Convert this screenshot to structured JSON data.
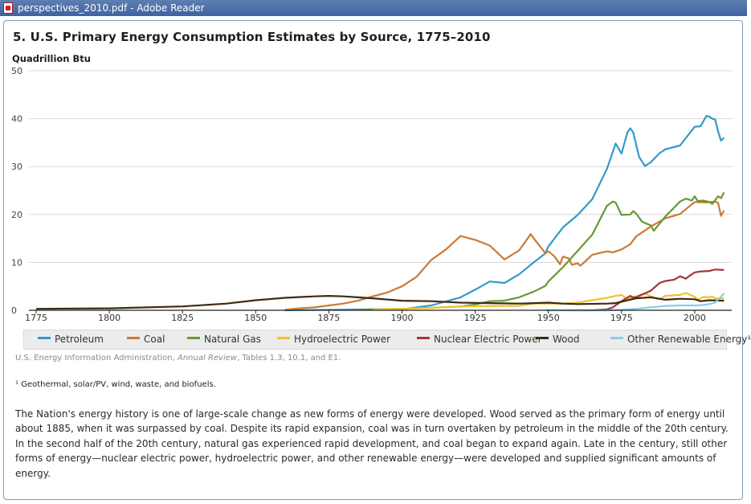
{
  "window": {
    "title": "perspectives_2010.pdf - Adobe Reader"
  },
  "chart_title": "5. U.S. Primary Energy Consumption Estimates by Source, 1775–2010",
  "y_axis_label": "Quadrillion Btu",
  "source": {
    "prefix": "U.S. Energy Information Administration, ",
    "publication": "Annual Review",
    "suffix": ", Tables 1.3, 10.1, and E1."
  },
  "footnote": "¹ Geothermal, solar/PV, wind, waste, and biofuels.",
  "body_text": "The Nation's energy history is one of large-scale change as new forms of energy were developed. Wood served as the primary form of energy until about 1885, when it was surpassed by coal. Despite its rapid expansion, coal was in turn overtaken by petroleum in the middle of the 20th century. In the second half of the 20th century, natural gas experienced rapid development, and coal began to expand again. Late in the century, still other forms of energy—nuclear electric power, hydroelectric power, and other renewable energy—were developed and supplied significant amounts of energy.",
  "chart_data": {
    "type": "line",
    "title": "5. U.S. Primary Energy Consumption Estimates by Source, 1775–2010",
    "ylabel": "Quadrillion Btu",
    "xlabel": "",
    "xlim": [
      1775,
      2011
    ],
    "ylim": [
      0,
      50
    ],
    "xticks": [
      1775,
      1800,
      1825,
      1850,
      1875,
      1900,
      1925,
      1950,
      1975,
      2000
    ],
    "yticks": [
      0,
      10,
      20,
      30,
      40,
      50
    ],
    "grid": "horizontal",
    "legend_position": "bottom",
    "series": [
      {
        "name": "Petroleum",
        "color": "#3399cc",
        "points": [
          [
            1860,
            0
          ],
          [
            1890,
            0.2
          ],
          [
            1900,
            0.2
          ],
          [
            1910,
            1.0
          ],
          [
            1920,
            2.7
          ],
          [
            1925,
            4.3
          ],
          [
            1930,
            6.0
          ],
          [
            1935,
            5.7
          ],
          [
            1940,
            7.5
          ],
          [
            1945,
            10.0
          ],
          [
            1949,
            11.9
          ],
          [
            1950,
            13.3
          ],
          [
            1955,
            17.3
          ],
          [
            1960,
            19.9
          ],
          [
            1965,
            23.2
          ],
          [
            1970,
            29.5
          ],
          [
            1973,
            34.8
          ],
          [
            1975,
            32.7
          ],
          [
            1977,
            37.1
          ],
          [
            1978,
            38.0
          ],
          [
            1979,
            37.1
          ],
          [
            1981,
            32.0
          ],
          [
            1983,
            30.1
          ],
          [
            1985,
            30.9
          ],
          [
            1988,
            32.8
          ],
          [
            1990,
            33.6
          ],
          [
            1995,
            34.4
          ],
          [
            2000,
            38.3
          ],
          [
            2002,
            38.4
          ],
          [
            2004,
            40.6
          ],
          [
            2005,
            40.4
          ],
          [
            2006,
            40.0
          ],
          [
            2007,
            39.8
          ],
          [
            2008,
            37.3
          ],
          [
            2009,
            35.4
          ],
          [
            2010,
            36.0
          ]
        ]
      },
      {
        "name": "Coal",
        "color": "#cc7a33",
        "points": [
          [
            1860,
            0.1
          ],
          [
            1865,
            0.4
          ],
          [
            1870,
            0.6
          ],
          [
            1875,
            1.0
          ],
          [
            1880,
            1.4
          ],
          [
            1885,
            2.0
          ],
          [
            1890,
            2.9
          ],
          [
            1895,
            3.7
          ],
          [
            1900,
            5.0
          ],
          [
            1905,
            7.0
          ],
          [
            1910,
            10.5
          ],
          [
            1915,
            12.7
          ],
          [
            1920,
            15.5
          ],
          [
            1925,
            14.7
          ],
          [
            1930,
            13.5
          ],
          [
            1935,
            10.6
          ],
          [
            1940,
            12.5
          ],
          [
            1944,
            15.9
          ],
          [
            1945,
            15.0
          ],
          [
            1949,
            11.9
          ],
          [
            1950,
            12.3
          ],
          [
            1952,
            11.3
          ],
          [
            1954,
            9.6
          ],
          [
            1955,
            11.2
          ],
          [
            1957,
            10.8
          ],
          [
            1958,
            9.5
          ],
          [
            1960,
            9.8
          ],
          [
            1961,
            9.3
          ],
          [
            1965,
            11.6
          ],
          [
            1970,
            12.3
          ],
          [
            1972,
            12.1
          ],
          [
            1975,
            12.7
          ],
          [
            1978,
            13.8
          ],
          [
            1980,
            15.4
          ],
          [
            1985,
            17.5
          ],
          [
            1990,
            19.2
          ],
          [
            1995,
            20.1
          ],
          [
            2000,
            22.6
          ],
          [
            2004,
            22.5
          ],
          [
            2007,
            22.7
          ],
          [
            2008,
            22.4
          ],
          [
            2009,
            19.7
          ],
          [
            2010,
            20.8
          ]
        ]
      },
      {
        "name": "Natural Gas",
        "color": "#669933",
        "points": [
          [
            1885,
            0.1
          ],
          [
            1890,
            0.2
          ],
          [
            1900,
            0.3
          ],
          [
            1910,
            0.5
          ],
          [
            1920,
            0.8
          ],
          [
            1925,
            1.2
          ],
          [
            1930,
            1.9
          ],
          [
            1935,
            2.0
          ],
          [
            1940,
            2.7
          ],
          [
            1945,
            3.9
          ],
          [
            1949,
            5.1
          ],
          [
            1950,
            6.0
          ],
          [
            1955,
            9.0
          ],
          [
            1960,
            12.4
          ],
          [
            1965,
            15.8
          ],
          [
            1970,
            21.8
          ],
          [
            1972,
            22.7
          ],
          [
            1973,
            22.5
          ],
          [
            1975,
            19.9
          ],
          [
            1978,
            20.0
          ],
          [
            1979,
            20.7
          ],
          [
            1980,
            20.2
          ],
          [
            1982,
            18.5
          ],
          [
            1985,
            17.7
          ],
          [
            1986,
            16.6
          ],
          [
            1990,
            19.6
          ],
          [
            1995,
            22.7
          ],
          [
            1997,
            23.3
          ],
          [
            1999,
            22.9
          ],
          [
            2000,
            23.8
          ],
          [
            2001,
            22.8
          ],
          [
            2003,
            22.9
          ],
          [
            2005,
            22.6
          ],
          [
            2006,
            22.2
          ],
          [
            2008,
            23.8
          ],
          [
            2009,
            23.4
          ],
          [
            2010,
            24.6
          ]
        ]
      },
      {
        "name": "Hydroelectric Power",
        "color": "#f2c12e",
        "points": [
          [
            1890,
            0.1
          ],
          [
            1900,
            0.3
          ],
          [
            1910,
            0.5
          ],
          [
            1920,
            0.8
          ],
          [
            1930,
            0.9
          ],
          [
            1940,
            0.9
          ],
          [
            1945,
            1.4
          ],
          [
            1950,
            1.4
          ],
          [
            1955,
            1.4
          ],
          [
            1960,
            1.6
          ],
          [
            1965,
            2.1
          ],
          [
            1970,
            2.6
          ],
          [
            1973,
            3.0
          ],
          [
            1975,
            3.2
          ],
          [
            1977,
            2.3
          ],
          [
            1980,
            2.9
          ],
          [
            1983,
            3.5
          ],
          [
            1985,
            2.9
          ],
          [
            1988,
            2.3
          ],
          [
            1990,
            3.0
          ],
          [
            1995,
            3.2
          ],
          [
            1997,
            3.6
          ],
          [
            2000,
            2.8
          ],
          [
            2001,
            2.2
          ],
          [
            2003,
            2.8
          ],
          [
            2005,
            2.7
          ],
          [
            2006,
            2.9
          ],
          [
            2007,
            2.4
          ],
          [
            2008,
            2.5
          ],
          [
            2010,
            2.5
          ]
        ]
      },
      {
        "name": "Nuclear Electric Power",
        "color": "#a8323e",
        "points": [
          [
            1957,
            0
          ],
          [
            1965,
            0
          ],
          [
            1970,
            0.2
          ],
          [
            1972,
            0.6
          ],
          [
            1975,
            1.9
          ],
          [
            1978,
            3.0
          ],
          [
            1979,
            2.7
          ],
          [
            1980,
            2.7
          ],
          [
            1985,
            4.1
          ],
          [
            1988,
            5.7
          ],
          [
            1990,
            6.1
          ],
          [
            1993,
            6.4
          ],
          [
            1995,
            7.1
          ],
          [
            1997,
            6.6
          ],
          [
            1998,
            7.1
          ],
          [
            2000,
            7.9
          ],
          [
            2002,
            8.1
          ],
          [
            2005,
            8.2
          ],
          [
            2007,
            8.5
          ],
          [
            2010,
            8.4
          ]
        ]
      },
      {
        "name": "Wood",
        "color": "#3d2b14",
        "points": [
          [
            1775,
            0.3
          ],
          [
            1800,
            0.4
          ],
          [
            1825,
            0.8
          ],
          [
            1840,
            1.4
          ],
          [
            1850,
            2.1
          ],
          [
            1860,
            2.6
          ],
          [
            1870,
            2.9
          ],
          [
            1875,
            3.0
          ],
          [
            1880,
            2.9
          ],
          [
            1885,
            2.7
          ],
          [
            1890,
            2.5
          ],
          [
            1900,
            2.0
          ],
          [
            1910,
            1.9
          ],
          [
            1920,
            1.6
          ],
          [
            1930,
            1.5
          ],
          [
            1940,
            1.4
          ],
          [
            1950,
            1.6
          ],
          [
            1955,
            1.4
          ],
          [
            1960,
            1.3
          ],
          [
            1970,
            1.4
          ],
          [
            1973,
            1.5
          ],
          [
            1980,
            2.5
          ],
          [
            1985,
            2.7
          ],
          [
            1990,
            2.2
          ],
          [
            1995,
            2.4
          ],
          [
            2000,
            2.3
          ],
          [
            2002,
            1.9
          ],
          [
            2005,
            2.1
          ],
          [
            2010,
            2.0
          ]
        ]
      },
      {
        "name": "Other Renewable Energy¹",
        "color": "#85cfed",
        "points": [
          [
            1949,
            0
          ],
          [
            1970,
            0
          ],
          [
            1975,
            0.1
          ],
          [
            1980,
            0.3
          ],
          [
            1985,
            0.6
          ],
          [
            1990,
            0.9
          ],
          [
            1995,
            1.0
          ],
          [
            2000,
            1.0
          ],
          [
            2003,
            1.1
          ],
          [
            2005,
            1.3
          ],
          [
            2007,
            1.6
          ],
          [
            2008,
            2.3
          ],
          [
            2009,
            2.8
          ],
          [
            2010,
            3.6
          ]
        ]
      }
    ]
  }
}
